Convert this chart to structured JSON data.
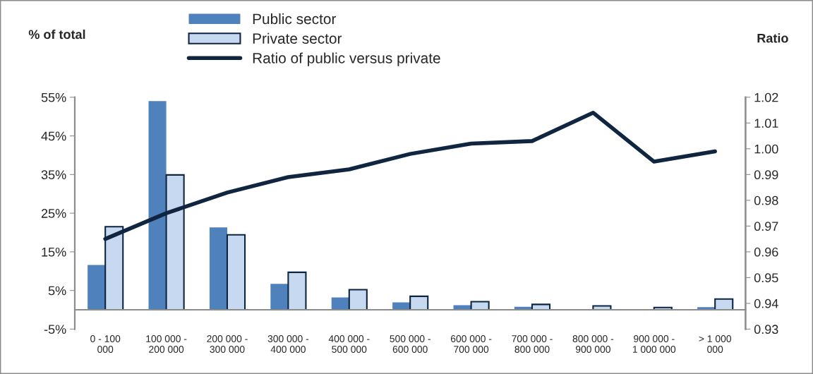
{
  "chart_data": {
    "type": "bar",
    "ylabel": "% of total",
    "y2label": "Ratio",
    "categories": [
      "0 - 100 000",
      "100 000 - 200 000",
      "200 000 - 300 000",
      "300 000 - 400 000",
      "400 000 - 500 000",
      "500 000 - 600 000",
      "600 000 - 700 000",
      "700 000 - 800 000",
      "800 000 - 900 000",
      "900 000 - 1 000 000",
      "> 1 000 000"
    ],
    "series": [
      {
        "name": "Public sector",
        "color": "#4f81bd",
        "values": [
          11.6,
          54.0,
          21.3,
          6.7,
          3.2,
          1.9,
          1.2,
          0.8,
          0.1,
          0.1,
          0.7
        ]
      },
      {
        "name": "Private sector",
        "color": "#c6d9f0",
        "values": [
          21.5,
          34.9,
          19.4,
          9.7,
          5.2,
          3.5,
          2.1,
          1.4,
          1.0,
          0.6,
          2.8
        ]
      },
      {
        "name": "Ratio of public versus private",
        "type": "line",
        "axis": "y2",
        "color": "#10253f",
        "values": [
          0.965,
          0.975,
          0.983,
          0.989,
          0.992,
          0.998,
          1.002,
          1.003,
          1.014,
          0.995,
          0.999
        ]
      }
    ],
    "ylim": [
      -5,
      55
    ],
    "yticks": [
      {
        "value": -5,
        "label": "-5%"
      },
      {
        "value": 5,
        "label": "5%"
      },
      {
        "value": 15,
        "label": "15%"
      },
      {
        "value": 25,
        "label": "25%"
      },
      {
        "value": 35,
        "label": "35%"
      },
      {
        "value": 45,
        "label": "45%"
      },
      {
        "value": 55,
        "label": "55%"
      }
    ],
    "y2lim": [
      0.93,
      1.02
    ],
    "y2ticks": [
      0.93,
      0.94,
      0.95,
      0.96,
      0.97,
      0.98,
      0.99,
      {
        "value": 1.0,
        "label": "1.00"
      },
      1.01,
      1.02
    ],
    "legend": "top",
    "grid": false
  }
}
